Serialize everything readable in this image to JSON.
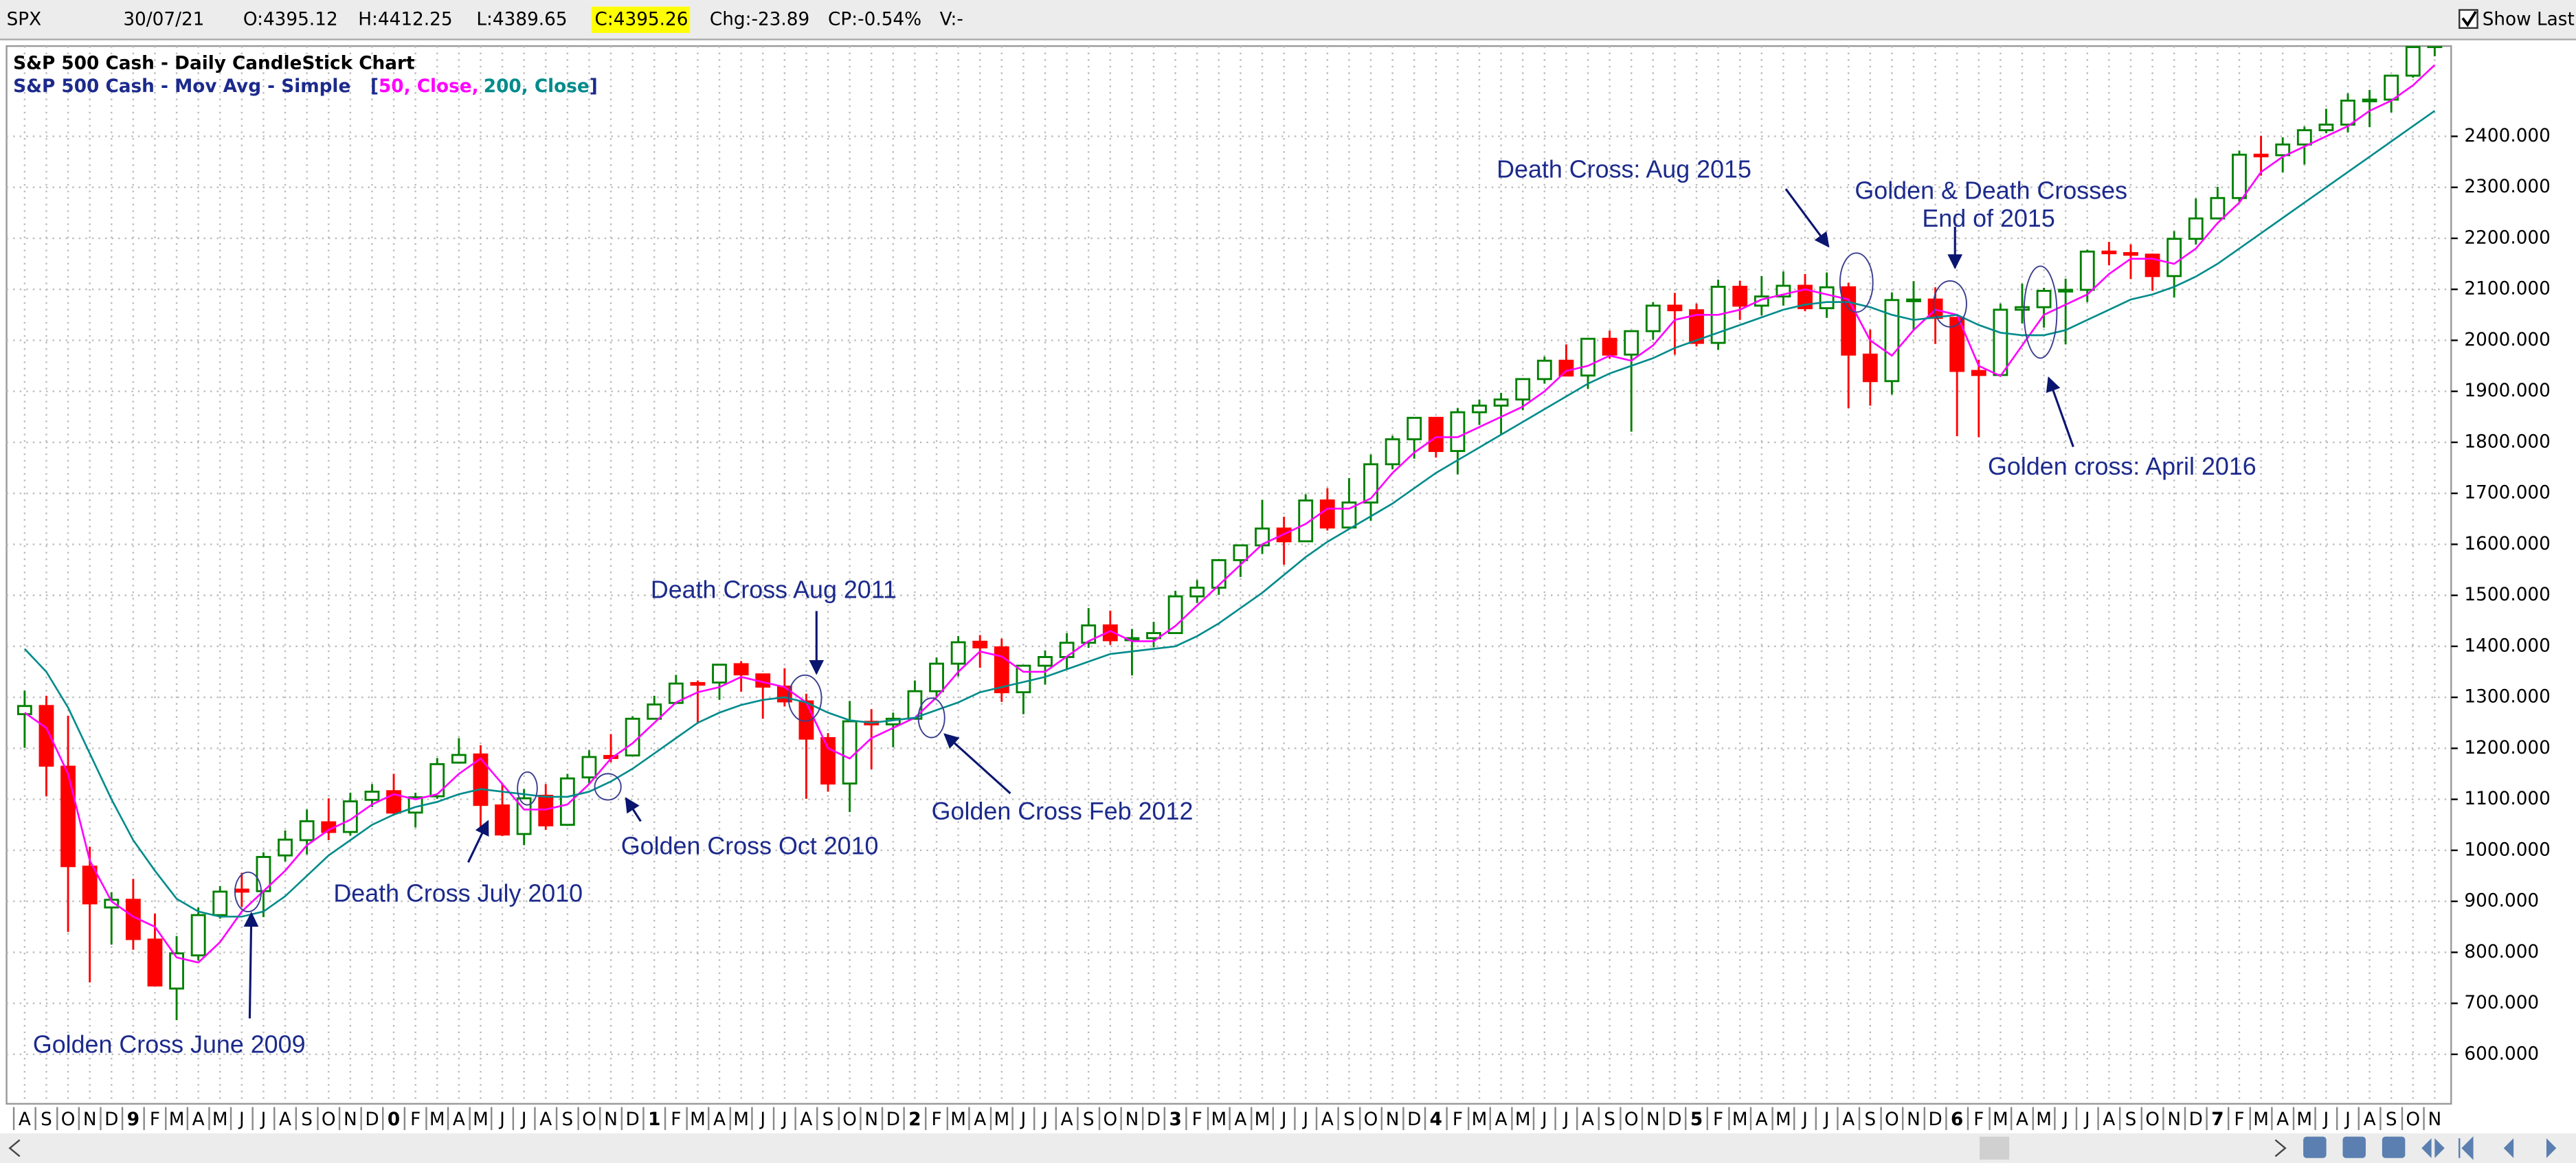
{
  "header": {
    "symbol": "SPX",
    "date": "30/07/21",
    "open": "O:4395.12",
    "high": "H:4412.25",
    "low": "L:4389.65",
    "close": "C:4395.26",
    "change": "Chg:-23.89",
    "change_pct": "CP:-0.54%",
    "volume": "V:-",
    "show_last": "Show Last"
  },
  "chart_data": {
    "type": "candlestick",
    "title": "S&P 500 Cash - Daily CandleStick Chart",
    "subtitle": "S&P 500 Cash - Mov Avg - Simple",
    "legend_open": "[",
    "legend_close": "]",
    "up_color": "#008000",
    "down_color": "#ff0000",
    "grid": true,
    "categories": [
      "A",
      "S",
      "O",
      "N",
      "D",
      "9",
      "F",
      "M",
      "A",
      "M",
      "J",
      "J",
      "A",
      "S",
      "O",
      "N",
      "D",
      "0",
      "F",
      "M",
      "A",
      "M",
      "J",
      "J",
      "A",
      "S",
      "O",
      "N",
      "D",
      "1",
      "F",
      "M",
      "A",
      "M",
      "J",
      "J",
      "A",
      "S",
      "O",
      "N",
      "D",
      "2",
      "F",
      "M",
      "A",
      "M",
      "J",
      "J",
      "A",
      "S",
      "O",
      "N",
      "D",
      "3",
      "F",
      "M",
      "A",
      "M",
      "J",
      "J",
      "A",
      "S",
      "O",
      "N",
      "D",
      "4",
      "F",
      "M",
      "A",
      "M",
      "J",
      "J",
      "A",
      "S",
      "O",
      "N",
      "D",
      "5",
      "F",
      "M",
      "A",
      "M",
      "J",
      "J",
      "A",
      "S",
      "O",
      "N",
      "D",
      "6",
      "F",
      "M",
      "A",
      "M",
      "J",
      "J",
      "A",
      "S",
      "O",
      "N",
      "D",
      "7",
      "F",
      "M",
      "A",
      "M",
      "J",
      "J",
      "A",
      "S",
      "O",
      "N"
    ],
    "open": [
      1267,
      1283,
      1164,
      968,
      888,
      903,
      825,
      729,
      794,
      873,
      923,
      920,
      990,
      1020,
      1055,
      1036,
      1099,
      1116,
      1074,
      1106,
      1172,
      1188,
      1088,
      1032,
      1107,
      1050,
      1143,
      1185,
      1186,
      1258,
      1289,
      1328,
      1329,
      1365,
      1345,
      1321,
      1292,
      1220,
      1131,
      1252,
      1247,
      1258,
      1312,
      1366,
      1409,
      1398,
      1310,
      1362,
      1379,
      1407,
      1441,
      1412,
      1416,
      1426,
      1498,
      1515,
      1569,
      1598,
      1631,
      1606,
      1686,
      1633,
      1682,
      1757,
      1806,
      1848,
      1783,
      1859,
      1872,
      1884,
      1924,
      1960,
      1931,
      2003,
      1972,
      2018,
      2068,
      2059,
      1995,
      2105,
      2068,
      2086,
      2107,
      2063,
      2104,
      1972,
      1920,
      2079,
      2080,
      2044,
      1940,
      1932,
      2060,
      2065,
      2097,
      2099,
      2174,
      2171,
      2168,
      2126,
      2199,
      2239,
      2279,
      2364,
      2363,
      2384,
      2412,
      2423,
      2470,
      2472,
      2519,
      2575
    ],
    "high": [
      1313,
      1303,
      1264,
      1007,
      918,
      944,
      876,
      832,
      888,
      930,
      956,
      996,
      1039,
      1080,
      1102,
      1113,
      1130,
      1150,
      1113,
      1181,
      1220,
      1206,
      1131,
      1120,
      1130,
      1150,
      1196,
      1228,
      1263,
      1303,
      1344,
      1333,
      1364,
      1371,
      1346,
      1357,
      1307,
      1230,
      1293,
      1277,
      1270,
      1333,
      1378,
      1420,
      1422,
      1415,
      1363,
      1392,
      1426,
      1475,
      1470,
      1434,
      1448,
      1509,
      1530,
      1570,
      1597,
      1687,
      1654,
      1698,
      1710,
      1730,
      1776,
      1813,
      1849,
      1850,
      1867,
      1884,
      1897,
      1925,
      1968,
      1992,
      2005,
      2019,
      2018,
      2075,
      2093,
      2072,
      2119,
      2117,
      2126,
      2135,
      2130,
      2133,
      2113,
      2021,
      2094,
      2116,
      2104,
      2044,
      1962,
      2072,
      2111,
      2103,
      2121,
      2178,
      2193,
      2188,
      2170,
      2214,
      2278,
      2301,
      2372,
      2401,
      2398,
      2419,
      2454,
      2484,
      2491,
      2520,
      2582,
      2597
    ],
    "low": [
      1201,
      1106,
      840,
      741,
      815,
      805,
      735,
      667,
      784,
      866,
      889,
      869,
      978,
      992,
      1020,
      1029,
      1085,
      1071,
      1045,
      1101,
      1170,
      1040,
      1028,
      1010,
      1040,
      1048,
      1131,
      1173,
      1186,
      1257,
      1289,
      1249,
      1295,
      1311,
      1258,
      1282,
      1101,
      1115,
      1075,
      1159,
      1202,
      1258,
      1300,
      1341,
      1358,
      1291,
      1267,
      1325,
      1355,
      1397,
      1403,
      1343,
      1398,
      1426,
      1485,
      1501,
      1536,
      1581,
      1560,
      1605,
      1627,
      1633,
      1646,
      1747,
      1768,
      1770,
      1737,
      1834,
      1814,
      1863,
      1915,
      1930,
      1905,
      1964,
      1821,
      2001,
      1972,
      1988,
      1981,
      2040,
      2049,
      2068,
      2057,
      2044,
      1867,
      1872,
      1894,
      2019,
      1993,
      1812,
      1810,
      1931,
      2033,
      2025,
      1992,
      2075,
      2147,
      2120,
      2097,
      2084,
      2188,
      2237,
      2272,
      2323,
      2329,
      2345,
      2406,
      2408,
      2418,
      2447,
      2515,
      2557
    ],
    "close": [
      1283,
      1166,
      969,
      896,
      903,
      826,
      735,
      798,
      873,
      919,
      919,
      987,
      1021,
      1057,
      1036,
      1096,
      1115,
      1074,
      1104,
      1169,
      1187,
      1089,
      1031,
      1102,
      1049,
      1141,
      1183,
      1181,
      1258,
      1286,
      1327,
      1326,
      1364,
      1345,
      1321,
      1292,
      1219,
      1131,
      1253,
      1247,
      1258,
      1312,
      1366,
      1408,
      1398,
      1310,
      1362,
      1379,
      1407,
      1441,
      1412,
      1416,
      1426,
      1498,
      1515,
      1569,
      1598,
      1631,
      1606,
      1686,
      1633,
      1682,
      1757,
      1806,
      1848,
      1783,
      1859,
      1872,
      1884,
      1924,
      1960,
      1931,
      2003,
      1972,
      2018,
      2068,
      2059,
      1995,
      2105,
      2068,
      2086,
      2107,
      2063,
      2104,
      1972,
      1920,
      2079,
      2080,
      2044,
      1940,
      1932,
      2060,
      2065,
      2097,
      2099,
      2174,
      2171,
      2168,
      2126,
      2199,
      2239,
      2279,
      2364,
      2363,
      2384,
      2412,
      2423,
      2470,
      2472,
      2519,
      2575,
      2590
    ],
    "moving_averages": [
      {
        "name": "50, Close,",
        "color": "#ff00ff",
        "values": [
          1270,
          1240,
          1150,
          980,
          900,
          870,
          850,
          790,
          780,
          820,
          880,
          920,
          960,
          1010,
          1040,
          1060,
          1090,
          1110,
          1100,
          1110,
          1150,
          1180,
          1130,
          1080,
          1080,
          1090,
          1130,
          1180,
          1210,
          1250,
          1290,
          1310,
          1320,
          1340,
          1330,
          1320,
          1290,
          1200,
          1180,
          1220,
          1240,
          1260,
          1300,
          1350,
          1390,
          1380,
          1350,
          1350,
          1380,
          1410,
          1430,
          1410,
          1410,
          1440,
          1480,
          1520,
          1560,
          1600,
          1620,
          1640,
          1670,
          1670,
          1690,
          1740,
          1780,
          1810,
          1810,
          1830,
          1850,
          1870,
          1900,
          1940,
          1950,
          1970,
          1960,
          1990,
          2040,
          2050,
          2050,
          2060,
          2080,
          2090,
          2100,
          2090,
          2080,
          2000,
          1970,
          2020,
          2060,
          2050,
          1950,
          1930,
          1990,
          2050,
          2070,
          2090,
          2130,
          2160,
          2160,
          2150,
          2180,
          2230,
          2270,
          2330,
          2360,
          2380,
          2400,
          2420,
          2450,
          2470,
          2500,
          2540
        ]
      },
      {
        "name": "200, Close",
        "color": "#008b8b",
        "values": [
          1395,
          1350,
          1280,
          1190,
          1100,
          1020,
          960,
          905,
          880,
          870,
          870,
          880,
          910,
          950,
          990,
          1020,
          1050,
          1070,
          1085,
          1095,
          1110,
          1120,
          1115,
          1110,
          1105,
          1105,
          1115,
          1135,
          1160,
          1190,
          1220,
          1250,
          1270,
          1285,
          1295,
          1300,
          1290,
          1270,
          1255,
          1250,
          1255,
          1260,
          1275,
          1290,
          1310,
          1320,
          1330,
          1340,
          1355,
          1370,
          1385,
          1390,
          1395,
          1400,
          1420,
          1445,
          1475,
          1505,
          1540,
          1575,
          1605,
          1630,
          1655,
          1680,
          1710,
          1740,
          1765,
          1790,
          1815,
          1840,
          1865,
          1890,
          1915,
          1935,
          1950,
          1965,
          1985,
          2000,
          2015,
          2030,
          2045,
          2060,
          2070,
          2075,
          2075,
          2065,
          2050,
          2040,
          2045,
          2050,
          2030,
          2015,
          2010,
          2010,
          2020,
          2040,
          2060,
          2080,
          2090,
          2105,
          2125,
          2150,
          2180,
          2210,
          2240,
          2270,
          2300,
          2330,
          2360,
          2390,
          2420,
          2450
        ]
      }
    ],
    "ylim": [
      503,
      2577
    ],
    "yticks": [
      {
        "value": 600,
        "label": "600.000"
      },
      {
        "value": 700,
        "label": "700.000"
      },
      {
        "value": 800,
        "label": "800.000"
      },
      {
        "value": 900,
        "label": "900.000"
      },
      {
        "value": 1000,
        "label": "1000.000"
      },
      {
        "value": 1100,
        "label": "1100.000"
      },
      {
        "value": 1200,
        "label": "1200.000"
      },
      {
        "value": 1300,
        "label": "1300.000"
      },
      {
        "value": 1400,
        "label": "1400.000"
      },
      {
        "value": 1500,
        "label": "1500.000"
      },
      {
        "value": 1600,
        "label": "1600.000"
      },
      {
        "value": 1700,
        "label": "1700.000"
      },
      {
        "value": 1800,
        "label": "1800.000"
      },
      {
        "value": 1900,
        "label": "1900.000"
      },
      {
        "value": 2000,
        "label": "2000.000"
      },
      {
        "value": 2100,
        "label": "2100.000"
      },
      {
        "value": 2200,
        "label": "2200.000"
      },
      {
        "value": 2300,
        "label": "2300.000"
      },
      {
        "value": 2400,
        "label": "2400.000"
      }
    ],
    "annotations": [
      "Golden Cross June 2009",
      "Death Cross July 2010",
      "Golden Cross Oct 2010",
      "Death Cross Aug 2011",
      "Golden Cross Feb 2012",
      "Death Cross: Aug 2015",
      "Golden & Death Crosses",
      "End of 2015",
      "Golden cross: April 2016"
    ]
  }
}
